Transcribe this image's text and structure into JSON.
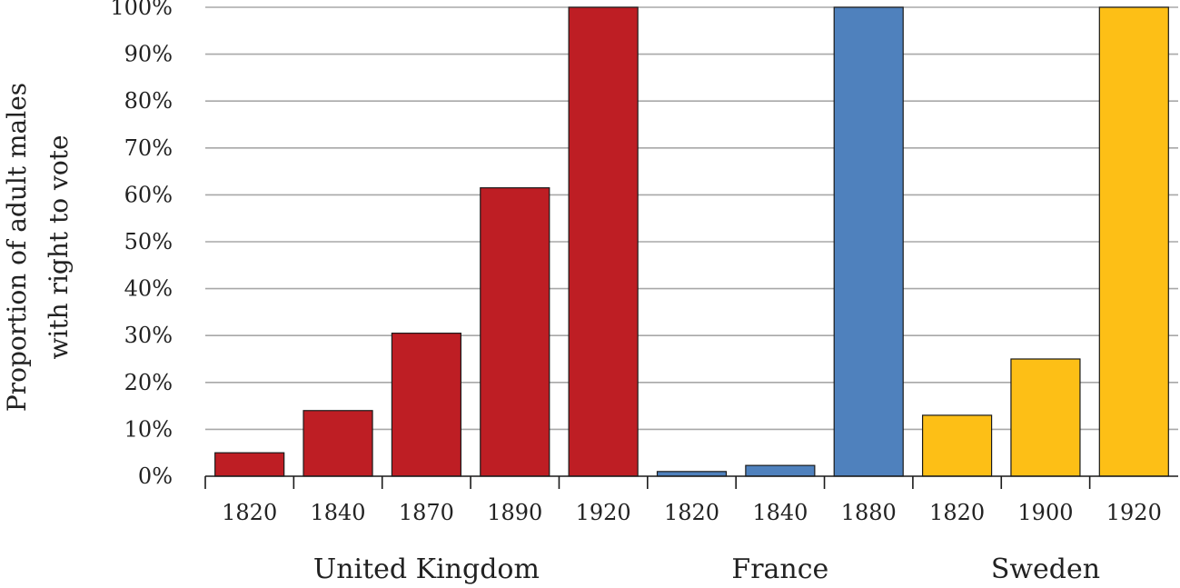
{
  "chart_data": {
    "type": "bar",
    "ylabel": [
      "Proportion of adult males",
      "with right to vote"
    ],
    "ylim": [
      0,
      100
    ],
    "yticks": [
      0,
      10,
      20,
      30,
      40,
      50,
      60,
      70,
      80,
      90,
      100
    ],
    "ytick_labels": [
      "0%",
      "10%",
      "20%",
      "30%",
      "40%",
      "50%",
      "60%",
      "70%",
      "80%",
      "90%",
      "100%"
    ],
    "grid": true,
    "groups": [
      {
        "name": "United Kingdom",
        "color": "#BE1E24",
        "categories": [
          "1820",
          "1840",
          "1870",
          "1890",
          "1920"
        ],
        "values": [
          5,
          14,
          30.5,
          61.5,
          100
        ]
      },
      {
        "name": "France",
        "color": "#4F81BD",
        "categories": [
          "1820",
          "1840",
          "1880"
        ],
        "values": [
          1,
          2.3,
          100
        ]
      },
      {
        "name": "Sweden",
        "color": "#FDBF16",
        "categories": [
          "1820",
          "1900",
          "1920"
        ],
        "values": [
          13,
          25,
          100
        ]
      }
    ]
  }
}
